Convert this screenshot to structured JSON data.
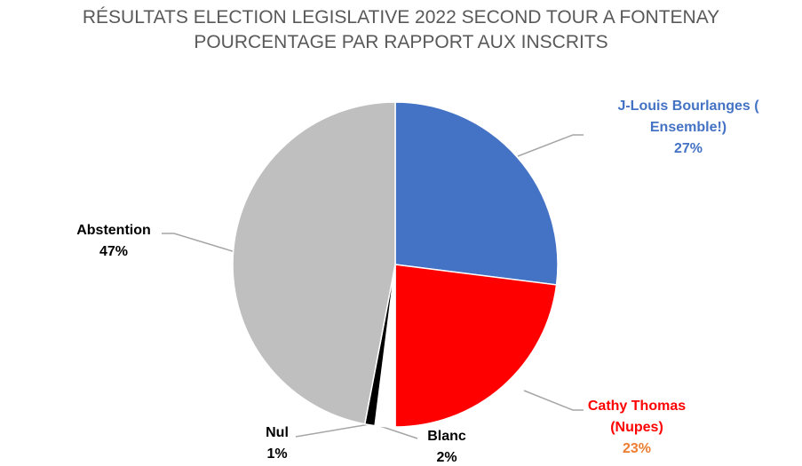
{
  "chart_data": {
    "type": "pie",
    "title": "RÉSULTATS ELECTION LEGISLATIVE 2022 SECOND TOUR A FONTENAY",
    "subtitle": "POURCENTAGE PAR RAPPORT AUX INSCRITS",
    "categories": [
      "J-Louis Bourlanges ( Ensemble!)",
      "Cathy Thomas (Nupes)",
      "Blanc",
      "Nul",
      "Abstention"
    ],
    "values": [
      27,
      23,
      2,
      1,
      47
    ],
    "value_labels": [
      "27%",
      "23%",
      "2%",
      "1%",
      "47%"
    ],
    "colors": [
      "#4472c4",
      "#ff0000",
      "#ffffff",
      "#000000",
      "#bfbfbf"
    ]
  }
}
